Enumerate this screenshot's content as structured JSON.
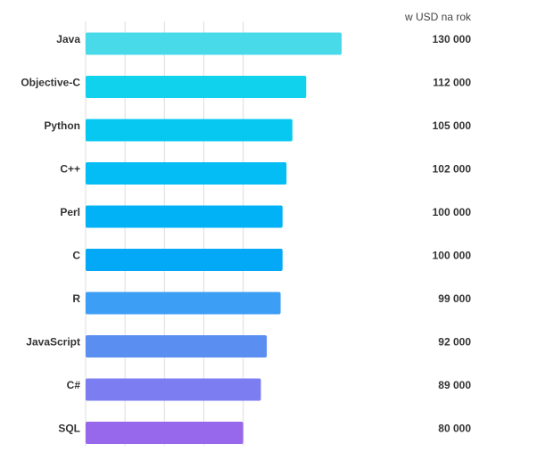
{
  "chart_data": {
    "type": "bar",
    "orientation": "horizontal",
    "title": "",
    "xlabel": "",
    "ylabel": "",
    "unit_label": "w USD na rok",
    "categories": [
      "Java",
      "Objective-C",
      "Python",
      "C++",
      "Perl",
      "C",
      "R",
      "JavaScript",
      "C#",
      "SQL"
    ],
    "values": [
      130000,
      112000,
      105000,
      102000,
      100000,
      100000,
      99000,
      92000,
      89000,
      80000
    ],
    "value_labels": [
      "130 000",
      "112 000",
      "105 000",
      "102 000",
      "100 000",
      "100 000",
      "99 000",
      "92 000",
      "89 000",
      "80 000"
    ],
    "bar_colors": [
      "#48dae8",
      "#10d2ec",
      "#07c8f1",
      "#04bdf4",
      "#01b2f7",
      "#03a9f6",
      "#3c9ef4",
      "#5b8ef1",
      "#7b7df1",
      "#9868ec"
    ],
    "xlim": [
      0,
      130000
    ],
    "gridlines": [
      20000,
      40000,
      60000,
      80000
    ],
    "grid": true,
    "legend": "none"
  }
}
